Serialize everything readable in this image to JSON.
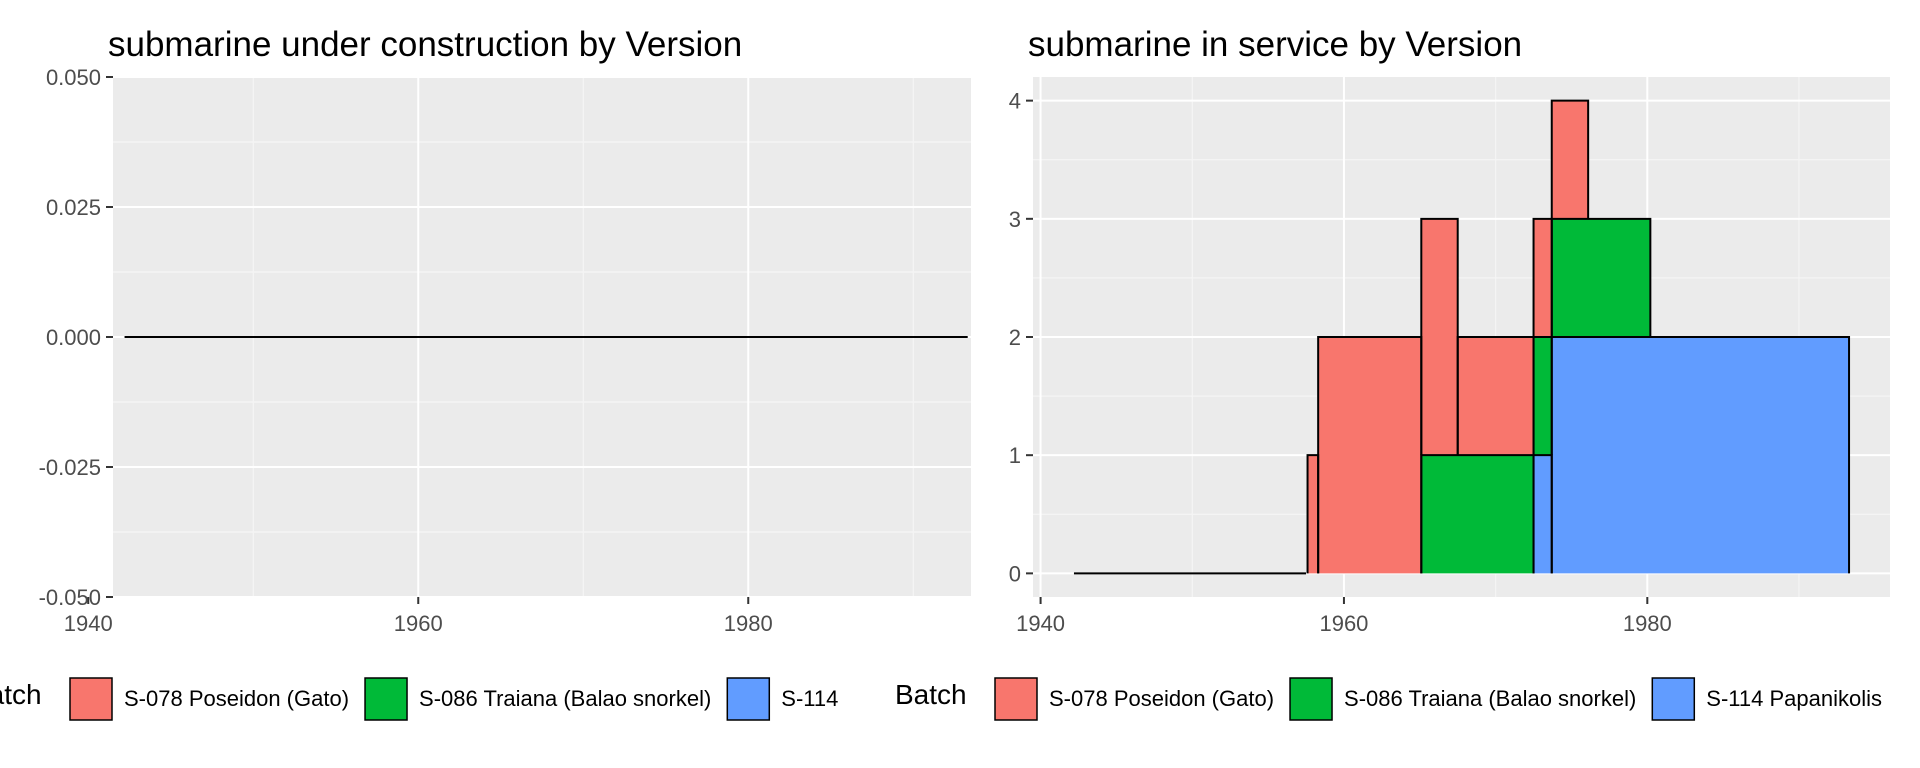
{
  "chart_data": [
    {
      "type": "area",
      "title": "submarine under construction by Version",
      "xlabel": "",
      "ylabel": "",
      "xlim": [
        1941.5,
        1993.5
      ],
      "ylim": [
        -0.05,
        0.05
      ],
      "x_ticks": [
        1940,
        1960,
        1980
      ],
      "x_tick_labels": [
        "1940",
        "1960",
        "1980"
      ],
      "y_ticks": [
        0.05,
        0.025,
        0.0,
        -0.025,
        -0.05
      ],
      "y_tick_labels": [
        "0.050",
        "0.025",
        "0.000",
        "-0.025",
        "-0.050"
      ],
      "grid": true,
      "line": {
        "x": [
          1942.2,
          1993.3
        ],
        "y": [
          0,
          0
        ]
      },
      "series": [],
      "legend": {
        "title": "Batch",
        "position": "bottom",
        "entries": [
          {
            "label": "S-078 Poseidon (Gato)",
            "color": "#F8766D"
          },
          {
            "label": "S-086 Traiana (Balao snorkel)",
            "color": "#00BA38"
          },
          {
            "label": "S-114",
            "color": "#619CFF"
          }
        ]
      }
    },
    {
      "type": "area",
      "title": "submarine in service by Version",
      "xlabel": "",
      "ylabel": "",
      "xlim": [
        1939.5,
        1996
      ],
      "ylim": [
        -0.2,
        4.2
      ],
      "x_ticks": [
        1940,
        1960,
        1980
      ],
      "x_tick_labels": [
        "1940",
        "1960",
        "1980"
      ],
      "y_ticks": [
        0,
        1,
        2,
        3,
        4
      ],
      "y_tick_labels": [
        "0",
        "1",
        "2",
        "3",
        "4"
      ],
      "grid": true,
      "baseline": {
        "x": [
          1942.2,
          1957.5
        ],
        "y": [
          0,
          0
        ]
      },
      "stack_order": [
        "S-114 Papanikolis",
        "S-086 Traiana (Balao snorkel)",
        "S-078 Poseidon (Gato)"
      ],
      "series": [
        {
          "name": "S-078 Poseidon (Gato)",
          "color": "#F8766D",
          "steps": [
            {
              "x0": 1957.6,
              "x1": 1958.3,
              "y": 1
            },
            {
              "x0": 1958.3,
              "x1": 1965.1,
              "y": 2
            },
            {
              "x0": 1965.1,
              "x1": 1967.5,
              "y": 2
            },
            {
              "x0": 1967.5,
              "x1": 1972.5,
              "y": 1
            },
            {
              "x0": 1972.5,
              "x1": 1973.7,
              "y": 1
            },
            {
              "x0": 1973.7,
              "x1": 1976.1,
              "y": 1
            }
          ]
        },
        {
          "name": "S-086 Traiana (Balao snorkel)",
          "color": "#00BA38",
          "steps": [
            {
              "x0": 1965.1,
              "x1": 1972.5,
              "y": 1
            },
            {
              "x0": 1972.5,
              "x1": 1973.7,
              "y": 1
            },
            {
              "x0": 1973.7,
              "x1": 1980.2,
              "y": 1
            }
          ]
        },
        {
          "name": "S-114 Papanikolis",
          "color": "#619CFF",
          "steps": [
            {
              "x0": 1972.5,
              "x1": 1973.7,
              "y": 1
            },
            {
              "x0": 1973.7,
              "x1": 1993.3,
              "y": 2
            }
          ]
        }
      ],
      "legend": {
        "title": "Batch",
        "position": "bottom",
        "entries": [
          {
            "label": "S-078 Poseidon (Gato)",
            "color": "#F8766D"
          },
          {
            "label": "S-086 Traiana (Balao snorkel)",
            "color": "#00BA38"
          },
          {
            "label": "S-114 Papanikolis",
            "color": "#619CFF"
          }
        ]
      }
    }
  ],
  "colors": {
    "panel_background": "#EBEBEB",
    "grid_major": "#FFFFFF",
    "grid_minor": "#F5F5F5",
    "outline": "#000000",
    "tick_text": "#4D4D4D"
  }
}
